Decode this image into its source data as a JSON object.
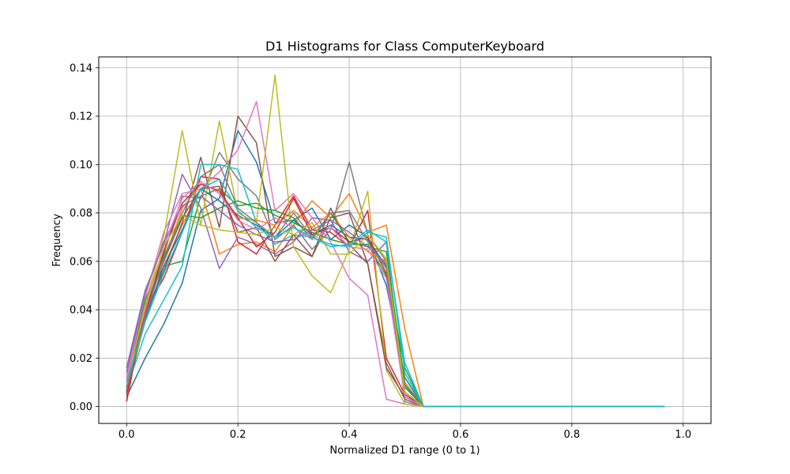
{
  "chart_data": {
    "type": "line",
    "title": "D1 Histograms for Class ComputerKeyboard",
    "xlabel": "Normalized D1 range (0 to 1)",
    "ylabel": "Frequency",
    "xlim": [
      -0.05,
      1.05
    ],
    "ylim": [
      -0.007,
      0.1445
    ],
    "xticks": [
      0.0,
      0.2,
      0.4,
      0.6,
      0.8,
      1.0
    ],
    "xtick_labels": [
      "0.0",
      "0.2",
      "0.4",
      "0.6",
      "0.8",
      "1.0"
    ],
    "yticks": [
      0.0,
      0.02,
      0.04,
      0.06,
      0.08,
      0.1,
      0.12,
      0.14
    ],
    "ytick_labels": [
      "0.00",
      "0.02",
      "0.04",
      "0.06",
      "0.08",
      "0.10",
      "0.12",
      "0.14"
    ],
    "grid": true,
    "x": [
      0.0,
      0.0333,
      0.0667,
      0.1,
      0.1333,
      0.1667,
      0.2,
      0.2333,
      0.2667,
      0.3,
      0.3333,
      0.3667,
      0.4,
      0.4333,
      0.4667,
      0.5,
      0.5333,
      0.5667,
      0.6,
      0.6333,
      0.6667,
      0.7,
      0.7333,
      0.7667,
      0.8,
      0.8333,
      0.8667,
      0.9,
      0.9333,
      0.9667
    ],
    "series": [
      {
        "color": "#1f77b4",
        "values": [
          0.004,
          0.02,
          0.034,
          0.051,
          0.081,
          0.086,
          0.114,
          0.101,
          0.076,
          0.077,
          0.082,
          0.069,
          0.075,
          0.07,
          0.05,
          0.012,
          0.0,
          0.0,
          0.0,
          0.0,
          0.0,
          0.0,
          0.0,
          0.0,
          0.0,
          0.0,
          0.0,
          0.0,
          0.0,
          0.0
        ]
      },
      {
        "color": "#ff7f0e",
        "values": [
          0.006,
          0.035,
          0.058,
          0.075,
          0.09,
          0.063,
          0.067,
          0.068,
          0.064,
          0.075,
          0.085,
          0.078,
          0.088,
          0.072,
          0.075,
          0.032,
          0.0,
          0.0,
          0.0,
          0.0,
          0.0,
          0.0,
          0.0,
          0.0,
          0.0,
          0.0,
          0.0,
          0.0,
          0.0,
          0.0
        ]
      },
      {
        "color": "#2ca02c",
        "values": [
          0.01,
          0.042,
          0.058,
          0.06,
          0.087,
          0.09,
          0.083,
          0.084,
          0.079,
          0.076,
          0.072,
          0.069,
          0.067,
          0.067,
          0.054,
          0.016,
          0.0,
          0.0,
          0.0,
          0.0,
          0.0,
          0.0,
          0.0,
          0.0,
          0.0,
          0.0,
          0.0,
          0.0,
          0.0,
          0.0
        ]
      },
      {
        "color": "#d62728",
        "values": [
          0.002,
          0.04,
          0.053,
          0.072,
          0.095,
          0.094,
          0.068,
          0.063,
          0.075,
          0.087,
          0.073,
          0.072,
          0.066,
          0.081,
          0.02,
          0.005,
          0.0,
          0.0,
          0.0,
          0.0,
          0.0,
          0.0,
          0.0,
          0.0,
          0.0,
          0.0,
          0.0,
          0.0,
          0.0,
          0.0
        ]
      },
      {
        "color": "#9467bd",
        "values": [
          0.016,
          0.048,
          0.067,
          0.096,
          0.082,
          0.057,
          0.07,
          0.067,
          0.063,
          0.068,
          0.078,
          0.077,
          0.064,
          0.06,
          0.068,
          0.002,
          0.0,
          0.0,
          0.0,
          0.0,
          0.0,
          0.0,
          0.0,
          0.0,
          0.0,
          0.0,
          0.0,
          0.0,
          0.0,
          0.0
        ]
      },
      {
        "color": "#8c564b",
        "values": [
          0.006,
          0.038,
          0.056,
          0.076,
          0.103,
          0.074,
          0.12,
          0.109,
          0.062,
          0.066,
          0.062,
          0.082,
          0.067,
          0.059,
          0.018,
          0.003,
          0.0,
          0.0,
          0.0,
          0.0,
          0.0,
          0.0,
          0.0,
          0.0,
          0.0,
          0.0,
          0.0,
          0.0,
          0.0,
          0.0
        ]
      },
      {
        "color": "#e377c2",
        "values": [
          0.012,
          0.045,
          0.072,
          0.088,
          0.09,
          0.097,
          0.106,
          0.126,
          0.081,
          0.088,
          0.078,
          0.068,
          0.053,
          0.046,
          0.003,
          0.001,
          0.0,
          0.0,
          0.0,
          0.0,
          0.0,
          0.0,
          0.0,
          0.0,
          0.0,
          0.0,
          0.0,
          0.0,
          0.0,
          0.0
        ]
      },
      {
        "color": "#7f7f7f",
        "values": [
          0.008,
          0.038,
          0.063,
          0.087,
          0.086,
          0.105,
          0.094,
          0.087,
          0.069,
          0.075,
          0.065,
          0.073,
          0.101,
          0.071,
          0.06,
          0.003,
          0.0,
          0.0,
          0.0,
          0.0,
          0.0,
          0.0,
          0.0,
          0.0,
          0.0,
          0.0,
          0.0,
          0.0,
          0.0,
          0.0
        ]
      },
      {
        "color": "#bcbd22",
        "values": [
          0.01,
          0.042,
          0.07,
          0.114,
          0.075,
          0.118,
          0.08,
          0.076,
          0.137,
          0.066,
          0.054,
          0.047,
          0.065,
          0.089,
          0.015,
          0.001,
          0.0,
          0.0,
          0.0,
          0.0,
          0.0,
          0.0,
          0.0,
          0.0,
          0.0,
          0.0,
          0.0,
          0.0,
          0.0,
          0.0
        ]
      },
      {
        "color": "#17becf",
        "values": [
          0.007,
          0.03,
          0.044,
          0.058,
          0.1,
          0.1,
          0.098,
          0.076,
          0.067,
          0.071,
          0.07,
          0.067,
          0.066,
          0.072,
          0.07,
          0.014,
          0.0,
          0.0,
          0.0,
          0.0,
          0.0,
          0.0,
          0.0,
          0.0,
          0.0,
          0.0,
          0.0,
          0.0,
          0.0,
          0.0
        ]
      },
      {
        "color": "#1f77b4",
        "values": [
          0.008,
          0.036,
          0.058,
          0.073,
          0.09,
          0.085,
          0.079,
          0.075,
          0.07,
          0.077,
          0.071,
          0.075,
          0.07,
          0.069,
          0.058,
          0.008,
          0.0,
          0.0,
          0.0,
          0.0,
          0.0,
          0.0,
          0.0,
          0.0,
          0.0,
          0.0,
          0.0,
          0.0,
          0.0,
          0.0
        ]
      },
      {
        "color": "#ff7f0e",
        "values": [
          0.007,
          0.04,
          0.06,
          0.082,
          0.092,
          0.089,
          0.078,
          0.077,
          0.075,
          0.081,
          0.074,
          0.08,
          0.07,
          0.064,
          0.06,
          0.01,
          0.0,
          0.0,
          0.0,
          0.0,
          0.0,
          0.0,
          0.0,
          0.0,
          0.0,
          0.0,
          0.0,
          0.0,
          0.0,
          0.0
        ]
      },
      {
        "color": "#2ca02c",
        "values": [
          0.009,
          0.044,
          0.062,
          0.079,
          0.078,
          0.082,
          0.085,
          0.082,
          0.081,
          0.078,
          0.069,
          0.08,
          0.068,
          0.066,
          0.064,
          0.009,
          0.0,
          0.0,
          0.0,
          0.0,
          0.0,
          0.0,
          0.0,
          0.0,
          0.0,
          0.0,
          0.0,
          0.0,
          0.0,
          0.0
        ]
      },
      {
        "color": "#d62728",
        "values": [
          0.005,
          0.038,
          0.064,
          0.084,
          0.092,
          0.089,
          0.078,
          0.066,
          0.072,
          0.086,
          0.071,
          0.074,
          0.068,
          0.07,
          0.055,
          0.006,
          0.0,
          0.0,
          0.0,
          0.0,
          0.0,
          0.0,
          0.0,
          0.0,
          0.0,
          0.0,
          0.0,
          0.0,
          0.0,
          0.0
        ]
      },
      {
        "color": "#9467bd",
        "values": [
          0.014,
          0.047,
          0.068,
          0.083,
          0.087,
          0.081,
          0.075,
          0.071,
          0.068,
          0.069,
          0.073,
          0.077,
          0.072,
          0.066,
          0.059,
          0.004,
          0.0,
          0.0,
          0.0,
          0.0,
          0.0,
          0.0,
          0.0,
          0.0,
          0.0,
          0.0,
          0.0,
          0.0,
          0.0,
          0.0
        ]
      },
      {
        "color": "#8c564b",
        "values": [
          0.006,
          0.041,
          0.06,
          0.078,
          0.09,
          0.091,
          0.072,
          0.074,
          0.06,
          0.071,
          0.062,
          0.078,
          0.08,
          0.059,
          0.016,
          0.004,
          0.0,
          0.0,
          0.0,
          0.0,
          0.0,
          0.0,
          0.0,
          0.0,
          0.0,
          0.0,
          0.0,
          0.0,
          0.0,
          0.0
        ]
      },
      {
        "color": "#e377c2",
        "values": [
          0.011,
          0.04,
          0.066,
          0.086,
          0.093,
          0.088,
          0.077,
          0.073,
          0.078,
          0.074,
          0.069,
          0.074,
          0.066,
          0.065,
          0.053,
          0.004,
          0.0,
          0.0,
          0.0,
          0.0,
          0.0,
          0.0,
          0.0,
          0.0,
          0.0,
          0.0,
          0.0,
          0.0,
          0.0,
          0.0
        ]
      },
      {
        "color": "#7f7f7f",
        "values": [
          0.007,
          0.037,
          0.061,
          0.08,
          0.095,
          0.1,
          0.082,
          0.076,
          0.07,
          0.08,
          0.07,
          0.08,
          0.081,
          0.068,
          0.057,
          0.006,
          0.0,
          0.0,
          0.0,
          0.0,
          0.0,
          0.0,
          0.0,
          0.0,
          0.0,
          0.0,
          0.0,
          0.0,
          0.0,
          0.0
        ]
      },
      {
        "color": "#bcbd22",
        "values": [
          0.009,
          0.042,
          0.066,
          0.079,
          0.075,
          0.073,
          0.072,
          0.071,
          0.074,
          0.071,
          0.076,
          0.063,
          0.063,
          0.071,
          0.061,
          0.006,
          0.0,
          0.0,
          0.0,
          0.0,
          0.0,
          0.0,
          0.0,
          0.0,
          0.0,
          0.0,
          0.0,
          0.0,
          0.0,
          0.0
        ]
      },
      {
        "color": "#17becf",
        "values": [
          0.01,
          0.035,
          0.055,
          0.072,
          0.09,
          0.094,
          0.081,
          0.074,
          0.07,
          0.074,
          0.07,
          0.066,
          0.067,
          0.073,
          0.068,
          0.018,
          0.0,
          0.0,
          0.0,
          0.0,
          0.0,
          0.0,
          0.0,
          0.0,
          0.0,
          0.0,
          0.0,
          0.0,
          0.0,
          0.0
        ]
      }
    ]
  }
}
